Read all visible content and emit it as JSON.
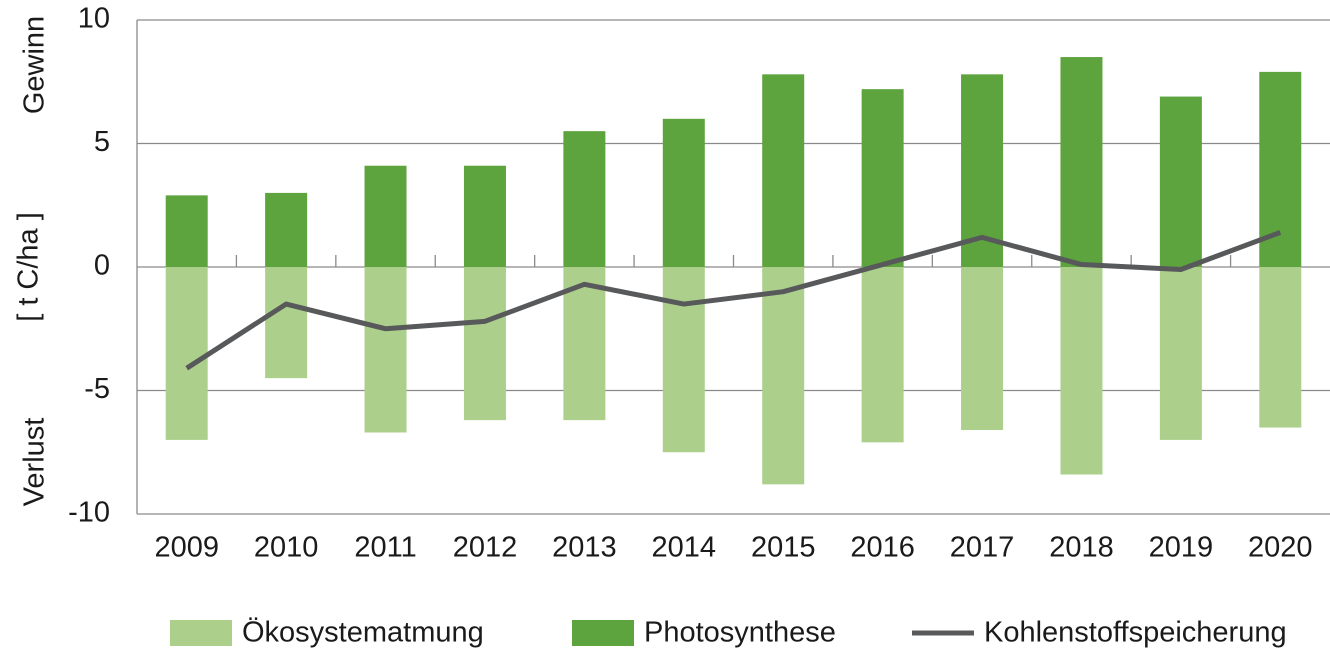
{
  "chart_data": {
    "type": "bar",
    "ylabel_top": "Gewinn",
    "ylabel": "[ t C/ha ]",
    "ylabel_bottom": "Verlust",
    "categories": [
      "2009",
      "2010",
      "2011",
      "2012",
      "2013",
      "2014",
      "2015",
      "2016",
      "2017",
      "2018",
      "2019",
      "2020"
    ],
    "series": [
      {
        "name": "Ökosystematmung",
        "type": "bar",
        "color": "#acd08c",
        "values": [
          -7.0,
          -4.5,
          -6.7,
          -6.2,
          -6.2,
          -7.5,
          -8.8,
          -7.1,
          -6.6,
          -8.4,
          -7.0,
          -6.5
        ]
      },
      {
        "name": "Photosynthese",
        "type": "bar",
        "color": "#5da33e",
        "values": [
          2.9,
          3.0,
          4.1,
          4.1,
          5.5,
          6.0,
          7.8,
          7.2,
          7.8,
          8.5,
          6.9,
          7.9
        ]
      },
      {
        "name": "Kohlenstoffspeicherung",
        "type": "line",
        "color": "#58595b",
        "values": [
          -4.1,
          -1.5,
          -2.5,
          -2.2,
          -0.7,
          -1.5,
          -1.0,
          0.1,
          1.2,
          0.1,
          -0.1,
          1.4
        ]
      }
    ],
    "ylim": [
      -10,
      10
    ],
    "yticks": [
      -10,
      -5,
      0,
      5,
      10
    ],
    "grid": true
  }
}
